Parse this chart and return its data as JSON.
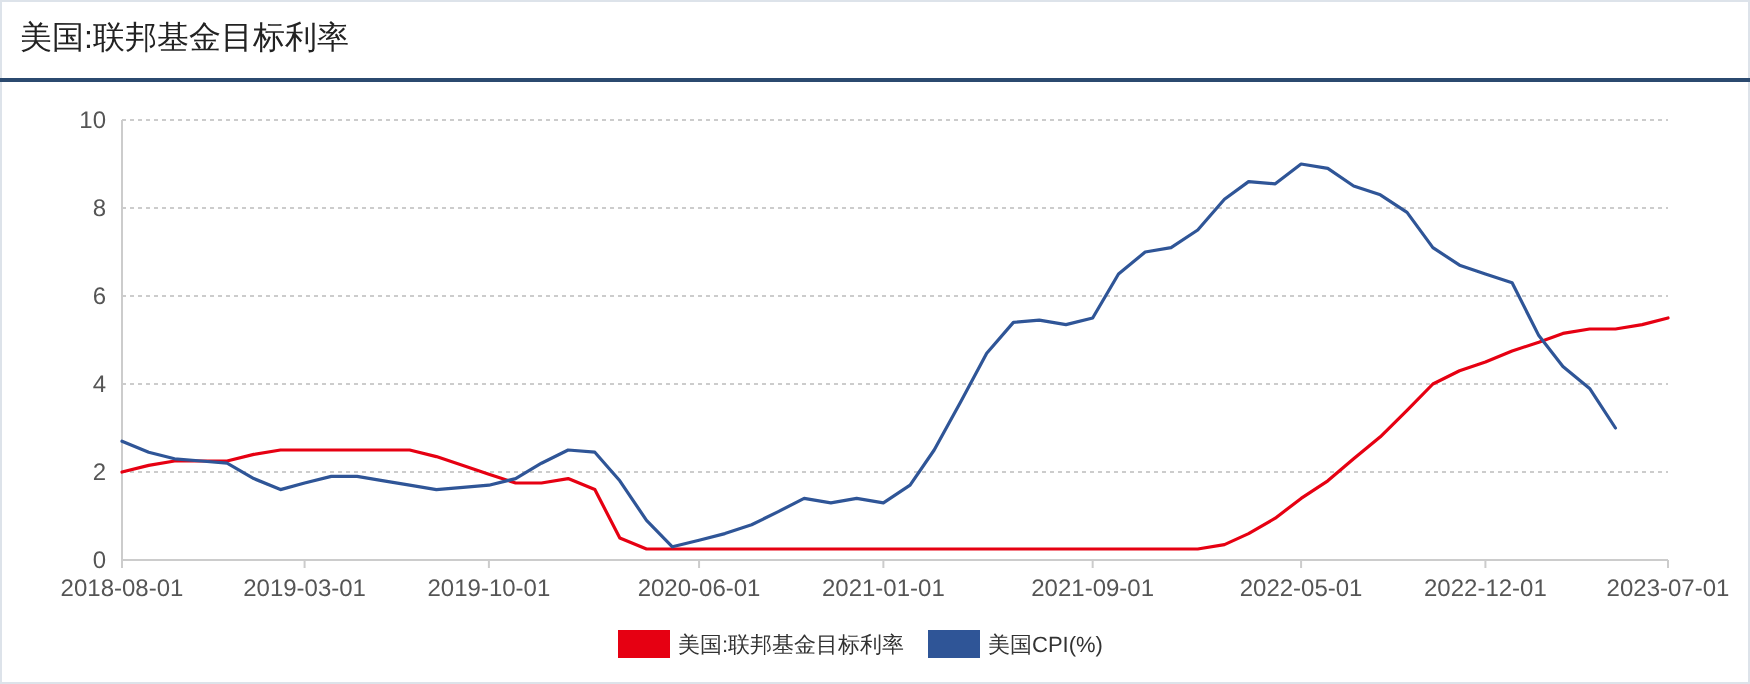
{
  "chart_data": {
    "type": "line",
    "title": "美国:联邦基金目标利率",
    "x": [
      "2018-08",
      "2018-09",
      "2018-10",
      "2018-11",
      "2018-12",
      "2019-01",
      "2019-02",
      "2019-03",
      "2019-04",
      "2019-05",
      "2019-06",
      "2019-07",
      "2019-08",
      "2019-09",
      "2019-10",
      "2019-11",
      "2019-12",
      "2020-01",
      "2020-02",
      "2020-03",
      "2020-04",
      "2020-05",
      "2020-06",
      "2020-07",
      "2020-08",
      "2020-09",
      "2020-10",
      "2020-11",
      "2020-12",
      "2021-01",
      "2021-02",
      "2021-03",
      "2021-04",
      "2021-05",
      "2021-06",
      "2021-07",
      "2021-08",
      "2021-09",
      "2021-10",
      "2021-11",
      "2021-12",
      "2022-01",
      "2022-02",
      "2022-03",
      "2022-04",
      "2022-05",
      "2022-06",
      "2022-07",
      "2022-08",
      "2022-09",
      "2022-10",
      "2022-11",
      "2022-12",
      "2023-01",
      "2023-02",
      "2023-03",
      "2023-04",
      "2023-05",
      "2023-06",
      "2023-07"
    ],
    "series": [
      {
        "name": "美国:联邦基金目标利率",
        "color": "#e60012",
        "values": [
          2.0,
          2.15,
          2.25,
          2.25,
          2.25,
          2.4,
          2.5,
          2.5,
          2.5,
          2.5,
          2.5,
          2.5,
          2.35,
          2.15,
          1.95,
          1.75,
          1.75,
          1.85,
          1.6,
          0.5,
          0.25,
          0.25,
          0.25,
          0.25,
          0.25,
          0.25,
          0.25,
          0.25,
          0.25,
          0.25,
          0.25,
          0.25,
          0.25,
          0.25,
          0.25,
          0.25,
          0.25,
          0.25,
          0.25,
          0.25,
          0.25,
          0.25,
          0.35,
          0.6,
          0.95,
          1.4,
          1.8,
          2.3,
          2.8,
          3.4,
          4.0,
          4.3,
          4.5,
          4.75,
          4.95,
          5.15,
          5.25,
          5.25,
          5.35,
          5.5
        ]
      },
      {
        "name": "美国CPI(%)",
        "color": "#2f5597",
        "values": [
          2.7,
          2.45,
          2.3,
          2.25,
          2.2,
          1.85,
          1.6,
          1.75,
          1.9,
          1.9,
          1.8,
          1.7,
          1.6,
          1.65,
          1.7,
          1.85,
          2.2,
          2.5,
          2.45,
          1.8,
          0.9,
          0.3,
          0.45,
          0.6,
          0.8,
          1.1,
          1.4,
          1.3,
          1.4,
          1.3,
          1.7,
          2.5,
          3.6,
          4.7,
          5.4,
          5.45,
          5.35,
          5.5,
          6.5,
          7.0,
          7.1,
          7.5,
          8.2,
          8.6,
          8.55,
          9.0,
          8.9,
          8.5,
          8.3,
          7.9,
          7.1,
          6.7,
          6.5,
          6.3,
          5.1,
          4.4,
          3.9,
          3.0,
          null,
          null
        ]
      }
    ],
    "xlim": [
      "2018-08",
      "2023-07"
    ],
    "xticks": [
      "2018-08-01",
      "2019-03-01",
      "2019-10-01",
      "2020-06-01",
      "2021-01-01",
      "2021-09-01",
      "2022-05-01",
      "2022-12-01",
      "2023-07-01"
    ],
    "ylim": [
      0,
      10
    ],
    "yticks": [
      0,
      2,
      4,
      6,
      8,
      10
    ],
    "grid": "y",
    "legend": "bottom",
    "marker": "none",
    "line_style": "solid"
  }
}
